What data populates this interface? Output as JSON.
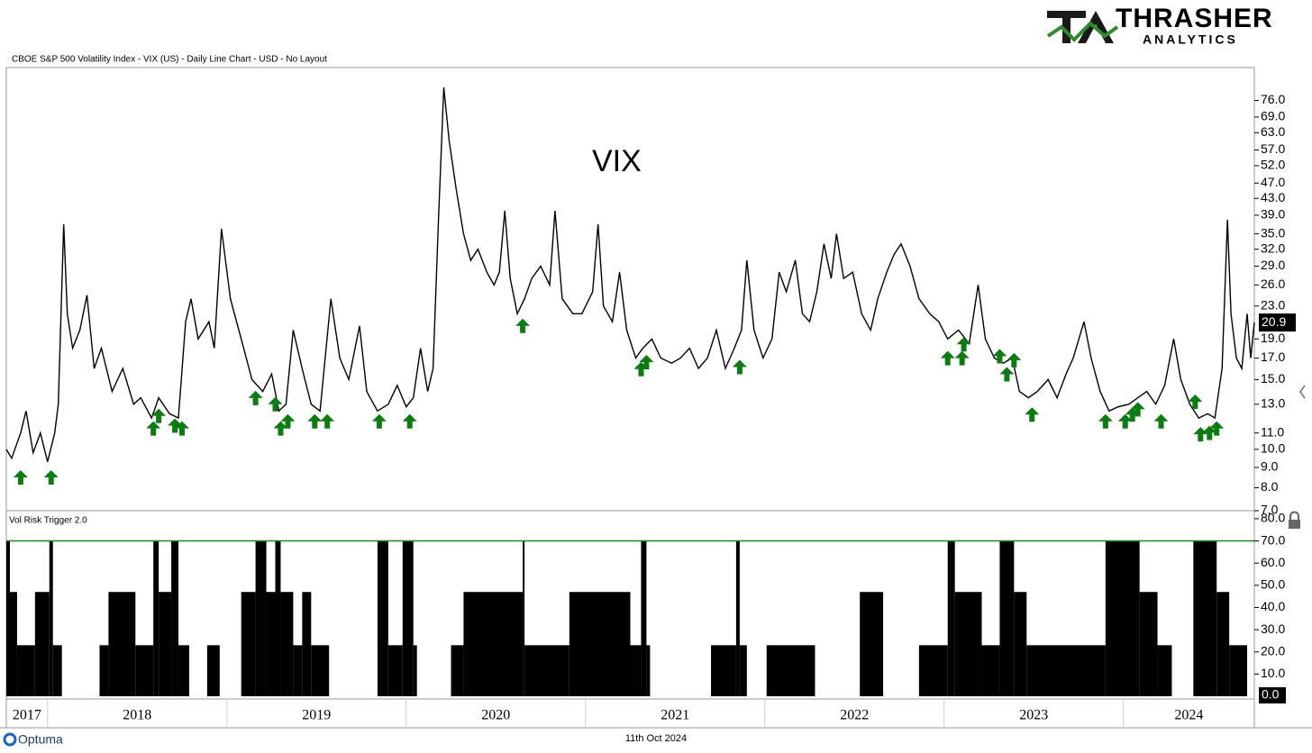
{
  "header": {
    "logo_name": "THRASHER",
    "logo_tagline": "ANALYTICS"
  },
  "footer": {
    "brand": "Optuma",
    "date": "11th Oct 2024"
  },
  "chart_data": [
    {
      "type": "line",
      "title": "CBOE S&P 500 Volatility Index - VIX (US) - Daily Line Chart - USD - No Layout",
      "annotation": "VIX",
      "color": "#000000",
      "log_scale": true,
      "xlim": [
        2017.77,
        2024.73
      ],
      "ylim": [
        7,
        92
      ],
      "yticks": [
        {
          "value": 7,
          "label": "7.0"
        },
        {
          "value": 8,
          "label": "8.0"
        },
        {
          "value": 9,
          "label": "9.0"
        },
        {
          "value": 10,
          "label": "10.0"
        },
        {
          "value": 11,
          "label": "11.0"
        },
        {
          "value": 13,
          "label": "13.0"
        },
        {
          "value": 15,
          "label": "15.0"
        },
        {
          "value": 17,
          "label": "17.0"
        },
        {
          "value": 19,
          "label": "19.0"
        },
        {
          "value": 23,
          "label": "23.0"
        },
        {
          "value": 26,
          "label": "26.0"
        },
        {
          "value": 29,
          "label": "29.0"
        },
        {
          "value": 32,
          "label": "32.0"
        },
        {
          "value": 35,
          "label": "35.0"
        },
        {
          "value": 39,
          "label": "39.0"
        },
        {
          "value": 43,
          "label": "43.0"
        },
        {
          "value": 47,
          "label": "47.0"
        },
        {
          "value": 52,
          "label": "52.0"
        },
        {
          "value": 57,
          "label": "57.0"
        },
        {
          "value": 63,
          "label": "63.0"
        },
        {
          "value": 69,
          "label": "69.0"
        },
        {
          "value": 76,
          "label": "76.0"
        }
      ],
      "last_value": 20.9,
      "x": [
        2017.77,
        2017.8,
        2017.85,
        2017.88,
        2017.92,
        2017.96,
        2018.0,
        2018.04,
        2018.06,
        2018.09,
        2018.11,
        2018.14,
        2018.18,
        2018.22,
        2018.26,
        2018.3,
        2018.36,
        2018.42,
        2018.48,
        2018.52,
        2018.58,
        2018.62,
        2018.68,
        2018.73,
        2018.77,
        2018.8,
        2018.84,
        2018.9,
        2018.93,
        2018.97,
        2019.02,
        2019.08,
        2019.14,
        2019.2,
        2019.25,
        2019.29,
        2019.33,
        2019.37,
        2019.42,
        2019.47,
        2019.52,
        2019.58,
        2019.63,
        2019.68,
        2019.74,
        2019.78,
        2019.84,
        2019.9,
        2019.95,
        2020.0,
        2020.04,
        2020.08,
        2020.12,
        2020.15,
        2020.18,
        2020.21,
        2020.24,
        2020.28,
        2020.32,
        2020.36,
        2020.4,
        2020.45,
        2020.49,
        2020.52,
        2020.55,
        2020.58,
        2020.62,
        2020.66,
        2020.7,
        2020.75,
        2020.8,
        2020.83,
        2020.87,
        2020.93,
        2020.98,
        2021.04,
        2021.07,
        2021.1,
        2021.15,
        2021.19,
        2021.23,
        2021.28,
        2021.32,
        2021.37,
        2021.42,
        2021.48,
        2021.53,
        2021.58,
        2021.63,
        2021.68,
        2021.73,
        2021.78,
        2021.83,
        2021.87,
        2021.9,
        2021.94,
        2021.99,
        2022.04,
        2022.08,
        2022.12,
        2022.17,
        2022.21,
        2022.25,
        2022.29,
        2022.33,
        2022.37,
        2022.4,
        2022.44,
        2022.49,
        2022.54,
        2022.59,
        2022.63,
        2022.68,
        2022.72,
        2022.76,
        2022.81,
        2022.86,
        2022.92,
        2022.97,
        2023.02,
        2023.08,
        2023.14,
        2023.19,
        2023.23,
        2023.28,
        2023.33,
        2023.38,
        2023.42,
        2023.47,
        2023.52,
        2023.58,
        2023.63,
        2023.68,
        2023.72,
        2023.78,
        2023.82,
        2023.87,
        2023.92,
        2023.97,
        2024.03,
        2024.08,
        2024.13,
        2024.18,
        2024.23,
        2024.28,
        2024.32,
        2024.37,
        2024.42,
        2024.47,
        2024.51,
        2024.55,
        2024.58,
        2024.6,
        2024.63,
        2024.66,
        2024.69,
        2024.71,
        2024.73
      ],
      "values": [
        10,
        9.5,
        11,
        12.5,
        9.8,
        11,
        9.3,
        11,
        13,
        37,
        22,
        18,
        20,
        24.5,
        16,
        18,
        14,
        16,
        13,
        13.5,
        12,
        13.5,
        12.3,
        12,
        21,
        24,
        19,
        21,
        18,
        36,
        24,
        19,
        15,
        14,
        15.5,
        12.5,
        13,
        20,
        16,
        13,
        12.5,
        24,
        17,
        15,
        20.5,
        14,
        12.5,
        13,
        14.5,
        12.8,
        13.5,
        18,
        14,
        16,
        38,
        82,
        60,
        45,
        35,
        30,
        32,
        28,
        26,
        28,
        40,
        27,
        22,
        24,
        27,
        29,
        26,
        40,
        24,
        22,
        22,
        25,
        37,
        23,
        21,
        28,
        20,
        17,
        18,
        19,
        17,
        16.5,
        17,
        18,
        16,
        17,
        20,
        16,
        18,
        20,
        30,
        20,
        17,
        19,
        28,
        25,
        30,
        22,
        21,
        25,
        33,
        27,
        35,
        27,
        28,
        22,
        20,
        24,
        28,
        31,
        33,
        29,
        24,
        22,
        21,
        19,
        20,
        18.5,
        26,
        19,
        17,
        16.5,
        17,
        14,
        13.5,
        14,
        15,
        13.5,
        15.5,
        17,
        21,
        17,
        14,
        12.5,
        12.8,
        13,
        13.5,
        14,
        13,
        14.5,
        19,
        15,
        13,
        12,
        12.3,
        12,
        16,
        38,
        22,
        17,
        16,
        22,
        17,
        20.9
      ],
      "signals": {
        "color": "#0b7d10",
        "x": [
          2017.85,
          2018.02,
          2018.59,
          2018.62,
          2018.71,
          2018.75,
          2019.16,
          2019.27,
          2019.3,
          2019.34,
          2019.49,
          2019.56,
          2019.85,
          2020.02,
          2020.65,
          2021.31,
          2021.34,
          2021.86,
          2023.02,
          2023.1,
          2023.11,
          2023.31,
          2023.35,
          2023.39,
          2023.49,
          2023.9,
          2024.01,
          2024.05,
          2024.08,
          2024.21,
          2024.4,
          2024.43,
          2024.48,
          2024.52
        ],
        "values": [
          8.95,
          8.95,
          11.9,
          12.8,
          12.1,
          11.9,
          14.2,
          13.7,
          11.9,
          12.4,
          12.4,
          12.4,
          12.4,
          12.4,
          21.6,
          16.8,
          17.5,
          17,
          17.9,
          17.9,
          19.4,
          18.1,
          16.3,
          17.7,
          12.9,
          12.4,
          12.4,
          12.9,
          13.3,
          12.4,
          13.9,
          11.5,
          11.6,
          11.9
        ]
      }
    },
    {
      "type": "histogram",
      "title": "Vol Risk Trigger 2.0",
      "color": "#000000",
      "threshold": 70,
      "threshold_color": "#1a8a1a",
      "xlim": [
        2017.77,
        2024.73
      ],
      "xticks": [
        {
          "value": 2017,
          "label": "2017"
        },
        {
          "value": 2018,
          "label": "2018"
        },
        {
          "value": 2019,
          "label": "2019"
        },
        {
          "value": 2020,
          "label": "2020"
        },
        {
          "value": 2021,
          "label": "2021"
        },
        {
          "value": 2022,
          "label": "2022"
        },
        {
          "value": 2023,
          "label": "2023"
        },
        {
          "value": 2024,
          "label": "2024"
        }
      ],
      "ylim": [
        0,
        82
      ],
      "yticks": [
        {
          "value": 10,
          "label": "10.0"
        },
        {
          "value": 20,
          "label": "20.0"
        },
        {
          "value": 30,
          "label": "30.0"
        },
        {
          "value": 40,
          "label": "40.0"
        },
        {
          "value": 50,
          "label": "50.0"
        },
        {
          "value": 60,
          "label": "60.0"
        },
        {
          "value": 70,
          "label": "70.0"
        },
        {
          "value": 80,
          "label": "80.0"
        }
      ],
      "last_value": 0,
      "last_value_label": "0.0",
      "bins": [
        2017.77,
        2017.79,
        2017.83,
        2017.93,
        2018.01,
        2018.03,
        2018.08,
        2018.29,
        2018.34,
        2018.49,
        2018.59,
        2018.62,
        2018.69,
        2018.73,
        2018.79,
        2018.89,
        2018.96,
        2019.08,
        2019.16,
        2019.22,
        2019.27,
        2019.3,
        2019.37,
        2019.42,
        2019.47,
        2019.57,
        2019.84,
        2019.9,
        2019.98,
        2020.04,
        2020.06,
        2020.25,
        2020.32,
        2020.65,
        2020.66,
        2020.91,
        2021.25,
        2021.31,
        2021.34,
        2021.36,
        2021.7,
        2021.84,
        2021.86,
        2021.9,
        2022.01,
        2022.28,
        2022.53,
        2022.66,
        2022.86,
        2023.02,
        2023.06,
        2023.21,
        2023.31,
        2023.39,
        2023.46,
        2023.9,
        2024.09,
        2024.19,
        2024.27,
        2024.39,
        2024.52,
        2024.59,
        2024.69,
        2024.73
      ],
      "values": [
        70,
        47,
        23,
        47,
        70,
        23,
        0,
        23,
        47,
        23,
        70,
        47,
        70,
        23,
        0,
        23,
        0,
        47,
        70,
        47,
        70,
        47,
        23,
        47,
        23,
        0,
        70,
        23,
        70,
        23,
        0,
        23,
        47,
        70,
        23,
        47,
        23,
        70,
        23,
        0,
        23,
        70,
        23,
        0,
        23,
        0,
        47,
        0,
        23,
        70,
        47,
        23,
        70,
        47,
        23,
        70,
        47,
        23,
        0,
        70,
        47,
        23,
        0
      ]
    }
  ]
}
